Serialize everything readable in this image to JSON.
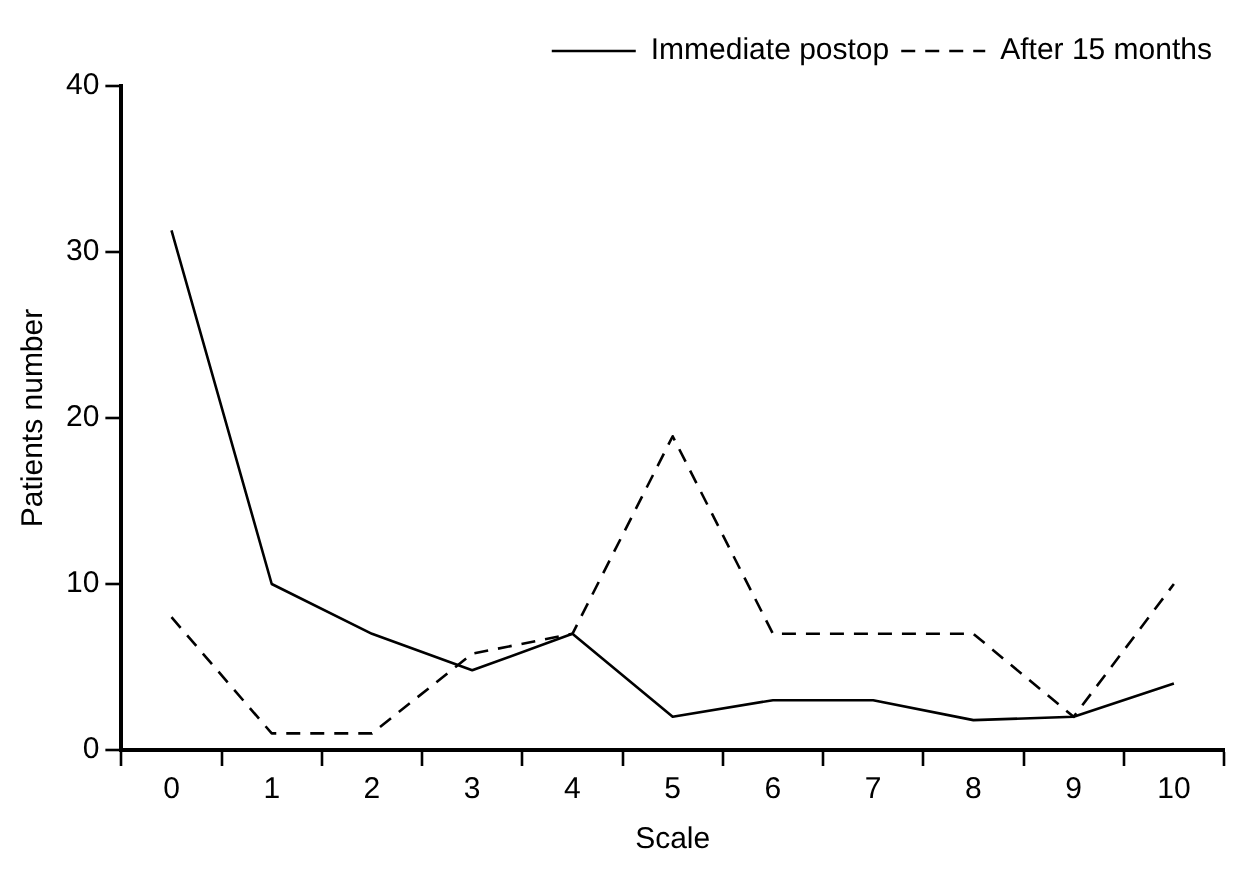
{
  "chart_data": {
    "type": "line",
    "xlabel": "Scale",
    "ylabel": "Patients number",
    "categories": [
      "0",
      "1",
      "2",
      "3",
      "4",
      "5",
      "6",
      "7",
      "8",
      "9",
      "10"
    ],
    "series": [
      {
        "name": "Immediate postop",
        "color": "#000000",
        "line_style": "solid",
        "values": [
          31.3,
          10,
          7,
          4.8,
          7,
          2,
          3,
          3,
          1.8,
          2,
          4
        ]
      },
      {
        "name": "After 15 months",
        "color": "#000000",
        "line_style": "dashed",
        "values": [
          8,
          1,
          1,
          5.8,
          7,
          18.9,
          7,
          7,
          7,
          2,
          10
        ]
      }
    ],
    "ylim": [
      0,
      40
    ],
    "yticks": [
      0,
      10,
      20,
      30,
      40
    ],
    "grid": false,
    "legend": "top right",
    "marker": "none"
  }
}
